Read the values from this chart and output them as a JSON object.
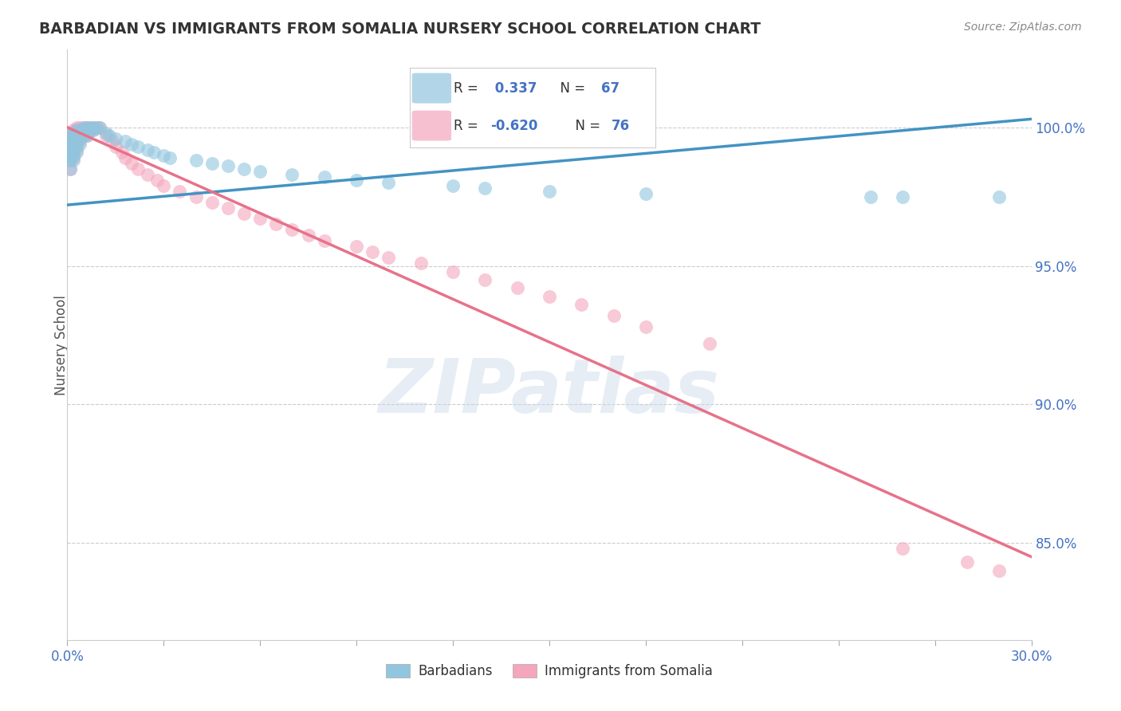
{
  "title": "BARBADIAN VS IMMIGRANTS FROM SOMALIA NURSERY SCHOOL CORRELATION CHART",
  "source": "Source: ZipAtlas.com",
  "ylabel": "Nursery School",
  "ytick_labels": [
    "100.0%",
    "95.0%",
    "90.0%",
    "85.0%"
  ],
  "ytick_values": [
    1.0,
    0.95,
    0.9,
    0.85
  ],
  "legend_blue_r": "0.337",
  "legend_blue_n": "67",
  "legend_pink_r": "-0.620",
  "legend_pink_n": "76",
  "legend_blue_label": "Barbadians",
  "legend_pink_label": "Immigrants from Somalia",
  "blue_color": "#92c5de",
  "pink_color": "#f4a6bd",
  "blue_line_color": "#4393c3",
  "pink_line_color": "#e7728a",
  "watermark": "ZIPatlas",
  "xmin": 0.0,
  "xmax": 0.3,
  "ymin": 0.815,
  "ymax": 1.028,
  "blue_scatter_x": [
    0.001,
    0.001,
    0.001,
    0.001,
    0.001,
    0.001,
    0.001,
    0.001,
    0.001,
    0.001,
    0.002,
    0.002,
    0.002,
    0.002,
    0.002,
    0.002,
    0.002,
    0.002,
    0.003,
    0.003,
    0.003,
    0.003,
    0.003,
    0.003,
    0.004,
    0.004,
    0.004,
    0.004,
    0.005,
    0.005,
    0.005,
    0.006,
    0.006,
    0.006,
    0.007,
    0.007,
    0.008,
    0.008,
    0.009,
    0.01,
    0.012,
    0.013,
    0.015,
    0.018,
    0.02,
    0.022,
    0.025,
    0.027,
    0.03,
    0.032,
    0.04,
    0.045,
    0.05,
    0.055,
    0.06,
    0.07,
    0.08,
    0.09,
    0.1,
    0.12,
    0.13,
    0.15,
    0.18,
    0.25,
    0.26,
    0.29
  ],
  "blue_scatter_y": [
    0.997,
    0.996,
    0.994,
    0.993,
    0.992,
    0.991,
    0.99,
    0.989,
    0.988,
    0.985,
    0.998,
    0.997,
    0.996,
    0.994,
    0.993,
    0.992,
    0.99,
    0.988,
    0.999,
    0.998,
    0.997,
    0.995,
    0.993,
    0.991,
    0.999,
    0.998,
    0.996,
    0.994,
    1.0,
    0.999,
    0.997,
    1.0,
    0.999,
    0.997,
    1.0,
    0.999,
    1.0,
    0.999,
    1.0,
    1.0,
    0.998,
    0.997,
    0.996,
    0.995,
    0.994,
    0.993,
    0.992,
    0.991,
    0.99,
    0.989,
    0.988,
    0.987,
    0.986,
    0.985,
    0.984,
    0.983,
    0.982,
    0.981,
    0.98,
    0.979,
    0.978,
    0.977,
    0.976,
    0.975,
    0.975,
    0.975
  ],
  "pink_scatter_x": [
    0.001,
    0.001,
    0.001,
    0.001,
    0.001,
    0.001,
    0.001,
    0.001,
    0.001,
    0.001,
    0.002,
    0.002,
    0.002,
    0.002,
    0.002,
    0.002,
    0.002,
    0.002,
    0.003,
    0.003,
    0.003,
    0.003,
    0.003,
    0.003,
    0.004,
    0.004,
    0.004,
    0.004,
    0.005,
    0.005,
    0.005,
    0.006,
    0.006,
    0.006,
    0.007,
    0.007,
    0.008,
    0.008,
    0.009,
    0.01,
    0.012,
    0.014,
    0.015,
    0.017,
    0.018,
    0.02,
    0.022,
    0.025,
    0.028,
    0.03,
    0.035,
    0.04,
    0.045,
    0.05,
    0.055,
    0.06,
    0.065,
    0.07,
    0.075,
    0.08,
    0.09,
    0.095,
    0.1,
    0.11,
    0.12,
    0.13,
    0.14,
    0.15,
    0.16,
    0.17,
    0.18,
    0.2,
    0.26,
    0.28,
    0.29
  ],
  "pink_scatter_y": [
    0.998,
    0.997,
    0.996,
    0.995,
    0.994,
    0.992,
    0.991,
    0.99,
    0.988,
    0.985,
    0.999,
    0.998,
    0.997,
    0.996,
    0.994,
    0.993,
    0.991,
    0.989,
    1.0,
    0.999,
    0.998,
    0.996,
    0.994,
    0.992,
    1.0,
    0.999,
    0.997,
    0.995,
    1.0,
    0.999,
    0.997,
    1.0,
    0.999,
    0.997,
    1.0,
    0.999,
    1.0,
    0.999,
    1.0,
    1.0,
    0.997,
    0.995,
    0.993,
    0.991,
    0.989,
    0.987,
    0.985,
    0.983,
    0.981,
    0.979,
    0.977,
    0.975,
    0.973,
    0.971,
    0.969,
    0.967,
    0.965,
    0.963,
    0.961,
    0.959,
    0.957,
    0.955,
    0.953,
    0.951,
    0.948,
    0.945,
    0.942,
    0.939,
    0.936,
    0.932,
    0.928,
    0.922,
    0.848,
    0.843,
    0.84
  ],
  "blue_line_x": [
    0.0,
    0.3
  ],
  "blue_line_y": [
    0.972,
    1.003
  ],
  "pink_line_x": [
    0.0,
    0.3
  ],
  "pink_line_y": [
    1.0,
    0.845
  ]
}
